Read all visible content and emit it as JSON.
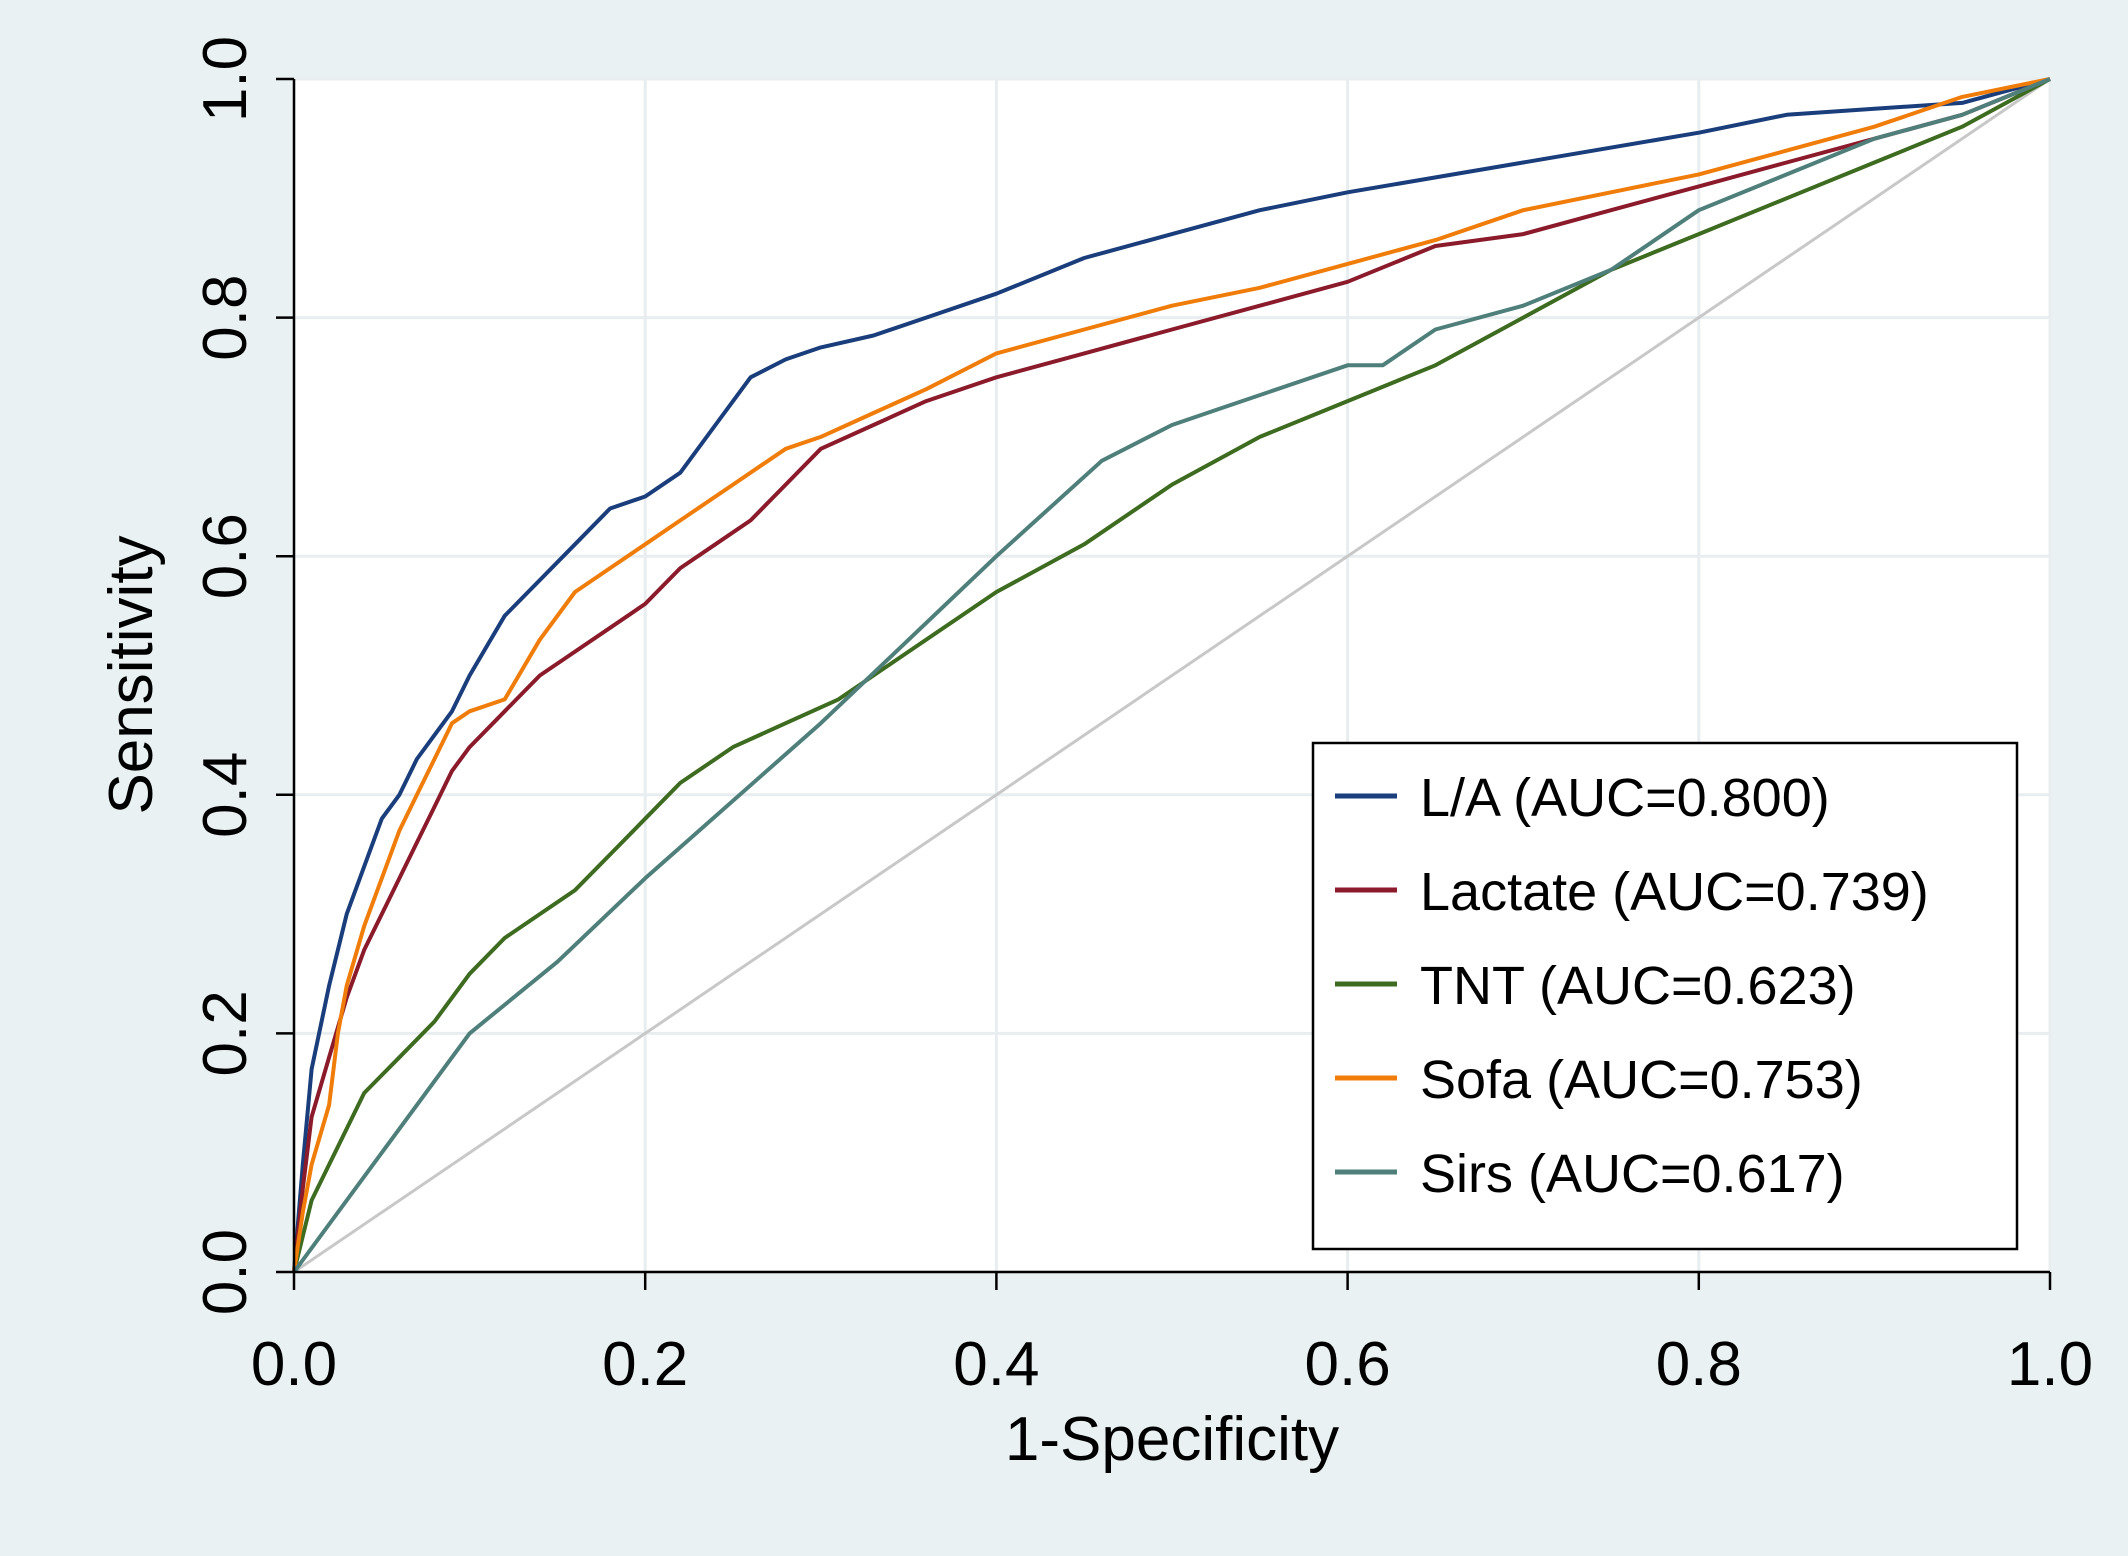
{
  "chart_data": {
    "type": "line",
    "title": "",
    "xlabel": "1-Specificity",
    "ylabel": "Sensitivity",
    "xlim": [
      0,
      1
    ],
    "ylim": [
      0,
      1
    ],
    "xticks": [
      "0.0",
      "0.2",
      "0.4",
      "0.6",
      "0.8",
      "1.0"
    ],
    "yticks": [
      "0.0",
      "0.2",
      "0.4",
      "0.6",
      "0.8",
      "1.0"
    ],
    "grid": true,
    "legend_position": "bottom-right",
    "reference_line": {
      "x": [
        0,
        1
      ],
      "y": [
        0,
        1
      ],
      "color": "#c8c8c8"
    },
    "series": [
      {
        "name": "L/A (AUC=0.800)",
        "color": "#1a3d7c",
        "x": [
          0,
          0.005,
          0.01,
          0.02,
          0.03,
          0.04,
          0.05,
          0.06,
          0.07,
          0.08,
          0.09,
          0.1,
          0.12,
          0.14,
          0.16,
          0.18,
          0.2,
          0.22,
          0.24,
          0.26,
          0.28,
          0.3,
          0.33,
          0.36,
          0.4,
          0.45,
          0.5,
          0.55,
          0.6,
          0.7,
          0.8,
          0.85,
          0.9,
          0.95,
          1.0
        ],
        "y": [
          0,
          0.09,
          0.17,
          0.24,
          0.3,
          0.34,
          0.38,
          0.4,
          0.43,
          0.45,
          0.47,
          0.5,
          0.55,
          0.58,
          0.61,
          0.64,
          0.65,
          0.67,
          0.71,
          0.75,
          0.765,
          0.775,
          0.785,
          0.8,
          0.82,
          0.85,
          0.87,
          0.89,
          0.905,
          0.93,
          0.955,
          0.97,
          0.975,
          0.98,
          1.0
        ]
      },
      {
        "name": "Lactate (AUC=0.739)",
        "color": "#8b1a2b",
        "x": [
          0,
          0.005,
          0.01,
          0.02,
          0.03,
          0.04,
          0.05,
          0.06,
          0.07,
          0.08,
          0.09,
          0.1,
          0.12,
          0.14,
          0.16,
          0.18,
          0.2,
          0.22,
          0.24,
          0.26,
          0.28,
          0.3,
          0.33,
          0.36,
          0.4,
          0.45,
          0.5,
          0.55,
          0.6,
          0.65,
          0.7,
          0.75,
          0.8,
          0.85,
          0.9,
          0.95,
          1.0
        ],
        "y": [
          0,
          0.07,
          0.13,
          0.18,
          0.23,
          0.27,
          0.3,
          0.33,
          0.36,
          0.39,
          0.42,
          0.44,
          0.47,
          0.5,
          0.52,
          0.54,
          0.56,
          0.59,
          0.61,
          0.63,
          0.66,
          0.69,
          0.71,
          0.73,
          0.75,
          0.77,
          0.79,
          0.81,
          0.83,
          0.86,
          0.87,
          0.89,
          0.91,
          0.93,
          0.95,
          0.97,
          1.0
        ]
      },
      {
        "name": "TNT (AUC=0.623)",
        "color": "#3d6b1f",
        "x": [
          0,
          0.005,
          0.01,
          0.02,
          0.03,
          0.04,
          0.06,
          0.08,
          0.1,
          0.12,
          0.14,
          0.16,
          0.18,
          0.2,
          0.22,
          0.25,
          0.28,
          0.31,
          0.35,
          0.4,
          0.45,
          0.5,
          0.55,
          0.6,
          0.65,
          0.7,
          0.75,
          0.8,
          0.85,
          0.9,
          0.95,
          1.0
        ],
        "y": [
          0,
          0.03,
          0.06,
          0.09,
          0.12,
          0.15,
          0.18,
          0.21,
          0.25,
          0.28,
          0.3,
          0.32,
          0.35,
          0.38,
          0.41,
          0.44,
          0.46,
          0.48,
          0.52,
          0.57,
          0.61,
          0.66,
          0.7,
          0.73,
          0.76,
          0.8,
          0.84,
          0.87,
          0.9,
          0.93,
          0.96,
          1.0
        ]
      },
      {
        "name": "Sofa (AUC=0.753)",
        "color": "#f07d0a",
        "x": [
          0,
          0.005,
          0.01,
          0.02,
          0.025,
          0.03,
          0.04,
          0.05,
          0.06,
          0.07,
          0.08,
          0.09,
          0.1,
          0.12,
          0.14,
          0.16,
          0.18,
          0.2,
          0.22,
          0.25,
          0.28,
          0.3,
          0.33,
          0.36,
          0.4,
          0.45,
          0.5,
          0.55,
          0.6,
          0.65,
          0.7,
          0.75,
          0.8,
          0.85,
          0.9,
          0.95,
          1.0
        ],
        "y": [
          0,
          0.05,
          0.09,
          0.14,
          0.2,
          0.24,
          0.29,
          0.33,
          0.37,
          0.4,
          0.43,
          0.46,
          0.47,
          0.48,
          0.53,
          0.57,
          0.59,
          0.61,
          0.63,
          0.66,
          0.69,
          0.7,
          0.72,
          0.74,
          0.77,
          0.79,
          0.81,
          0.825,
          0.845,
          0.865,
          0.89,
          0.905,
          0.92,
          0.94,
          0.96,
          0.985,
          1.0
        ]
      },
      {
        "name": "Sirs (AUC=0.617)",
        "color": "#4f7f7a",
        "x": [
          0,
          0.05,
          0.1,
          0.15,
          0.2,
          0.3,
          0.4,
          0.46,
          0.5,
          0.52,
          0.6,
          0.62,
          0.65,
          0.7,
          0.75,
          0.8,
          0.9,
          0.95,
          1.0
        ],
        "y": [
          0,
          0.1,
          0.2,
          0.26,
          0.33,
          0.46,
          0.6,
          0.68,
          0.71,
          0.72,
          0.76,
          0.76,
          0.79,
          0.81,
          0.84,
          0.89,
          0.95,
          0.97,
          1.0
        ]
      }
    ]
  }
}
